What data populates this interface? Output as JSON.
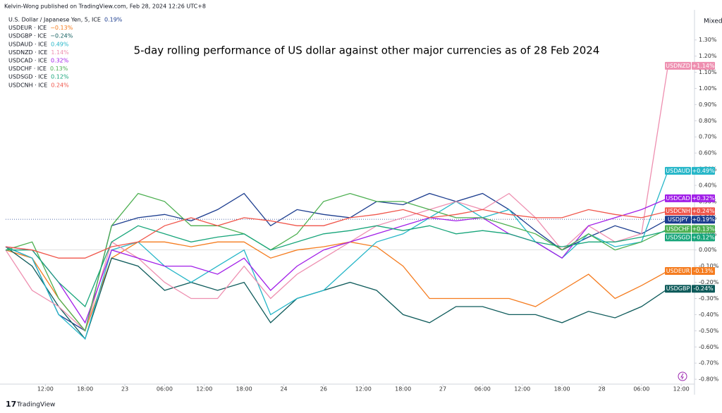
{
  "header": "Kelvin-Wong published on TradingView.com, Feb 28, 2024 12:26 UTC+8",
  "scale_mode": "Mixed",
  "brand": "TradingView",
  "chart_data": {
    "type": "line",
    "title": "5-day rolling performance of US dollar against other major currencies as of 28 Feb 2024",
    "x": [
      6,
      10,
      14,
      18,
      22,
      26,
      30,
      34,
      38,
      42,
      46,
      50,
      54,
      58,
      62,
      66,
      70,
      74,
      78,
      82,
      86,
      90,
      94,
      98,
      102,
      106
    ],
    "xlim": [
      6,
      110
    ],
    "xticks": [
      {
        "value": 12,
        "label": "12:00"
      },
      {
        "value": 18,
        "label": "18:00"
      },
      {
        "value": 24,
        "label": "23"
      },
      {
        "value": 30,
        "label": "06:00"
      },
      {
        "value": 36,
        "label": "12:00"
      },
      {
        "value": 42,
        "label": "18:00"
      },
      {
        "value": 48,
        "label": "24"
      },
      {
        "value": 54,
        "label": "26"
      },
      {
        "value": 60,
        "label": "12:00"
      },
      {
        "value": 66,
        "label": "18:00"
      },
      {
        "value": 72,
        "label": "27"
      },
      {
        "value": 78,
        "label": "06:00"
      },
      {
        "value": 84,
        "label": "12:00"
      },
      {
        "value": 90,
        "label": "18:00"
      },
      {
        "value": 96,
        "label": "28"
      },
      {
        "value": 102,
        "label": "06:00"
      },
      {
        "value": 108,
        "label": "12:00"
      }
    ],
    "ylim": [
      -0.83,
      1.46
    ],
    "yticks": [
      {
        "value": 1.3,
        "label": "1.30%"
      },
      {
        "value": 1.2,
        "label": "1.20%"
      },
      {
        "value": 1.1,
        "label": "1.10%"
      },
      {
        "value": 1.0,
        "label": "1.00%"
      },
      {
        "value": 0.9,
        "label": "0.90%"
      },
      {
        "value": 0.8,
        "label": "0.80%"
      },
      {
        "value": 0.7,
        "label": "0.70%"
      },
      {
        "value": 0.6,
        "label": "0.60%"
      },
      {
        "value": 0.5,
        "label": "0.50%"
      },
      {
        "value": 0.4,
        "label": "0.40%"
      },
      {
        "value": 0.3,
        "label": "0.30%"
      },
      {
        "value": 0.2,
        "label": "0.20%"
      },
      {
        "value": 0.1,
        "label": "0.10%"
      },
      {
        "value": 0,
        "label": "0.00%"
      },
      {
        "value": -0.1,
        "label": "-0.10%"
      },
      {
        "value": -0.2,
        "label": "-0.20%"
      },
      {
        "value": -0.3,
        "label": "-0.30%"
      },
      {
        "value": -0.4,
        "label": "-0.40%"
      },
      {
        "value": -0.5,
        "label": "-0.50%"
      },
      {
        "value": -0.6,
        "label": "-0.60%"
      },
      {
        "value": -0.7,
        "label": "-0.70%"
      },
      {
        "value": -0.8,
        "label": "-0.80%"
      }
    ],
    "series": [
      {
        "name": "U.S. Dollar / Japanese Yen, 5, ICE",
        "symbol": "USDJPY",
        "color": "#1c3d8f",
        "legend_label": "0.19%",
        "tag_label": "+0.19%",
        "values": [
          0.02,
          -0.05,
          -0.4,
          -0.5,
          0.15,
          0.2,
          0.22,
          0.18,
          0.25,
          0.35,
          0.15,
          0.25,
          0.22,
          0.2,
          0.3,
          0.28,
          0.35,
          0.3,
          0.35,
          0.25,
          0.12,
          0.0,
          0.08,
          0.15,
          0.1,
          0.19
        ]
      },
      {
        "name": "USDEUR · ICE",
        "symbol": "USDEUR",
        "color": "#f57c1f",
        "legend_label": "−0.13%",
        "tag_label": "-0.13%",
        "values": [
          0.0,
          -0.05,
          -0.3,
          -0.5,
          -0.05,
          0.05,
          0.05,
          0.02,
          0.05,
          0.05,
          -0.05,
          0.0,
          0.02,
          0.05,
          0.02,
          -0.1,
          -0.3,
          -0.3,
          -0.3,
          -0.3,
          -0.35,
          -0.25,
          -0.15,
          -0.3,
          -0.22,
          -0.13
        ]
      },
      {
        "name": "USDGBP · ICE",
        "symbol": "USDGBP",
        "color": "#0e5b5b",
        "legend_label": "−0.24%",
        "tag_label": "-0.24%",
        "values": [
          0.02,
          -0.1,
          -0.35,
          -0.55,
          -0.05,
          -0.1,
          -0.25,
          -0.2,
          -0.25,
          -0.2,
          -0.45,
          -0.3,
          -0.25,
          -0.2,
          -0.25,
          -0.4,
          -0.45,
          -0.35,
          -0.35,
          -0.4,
          -0.4,
          -0.45,
          -0.38,
          -0.42,
          -0.35,
          -0.24
        ]
      },
      {
        "name": "USDAUD · ICE",
        "symbol": "USDAUD",
        "color": "#26b6c8",
        "legend_label": "0.49%",
        "tag_label": "+0.49%",
        "values": [
          0.02,
          -0.05,
          -0.4,
          -0.55,
          0.0,
          0.05,
          -0.1,
          -0.2,
          -0.1,
          0.0,
          -0.4,
          -0.3,
          -0.25,
          -0.1,
          0.05,
          0.1,
          0.2,
          0.3,
          0.2,
          0.25,
          0.05,
          -0.05,
          0.1,
          0.02,
          0.05,
          0.49
        ]
      },
      {
        "name": "USDNZD · ICE",
        "symbol": "USDNZD",
        "color": "#ee8fb0",
        "legend_label": "1.14%",
        "tag_label": "+1.14%",
        "values": [
          0.0,
          -0.25,
          -0.35,
          -0.5,
          0.05,
          -0.05,
          -0.2,
          -0.3,
          -0.3,
          -0.1,
          -0.3,
          -0.15,
          -0.05,
          0.05,
          0.15,
          0.2,
          0.25,
          0.3,
          0.25,
          0.35,
          0.2,
          0.0,
          0.15,
          0.05,
          0.1,
          1.14
        ]
      },
      {
        "name": "USDCAD · ICE",
        "symbol": "USDCAD",
        "color": "#a11fe8",
        "legend_label": "0.32%",
        "tag_label": "+0.32%",
        "values": [
          0.02,
          0.0,
          -0.2,
          -0.45,
          0.0,
          -0.05,
          -0.1,
          -0.1,
          -0.15,
          -0.05,
          -0.25,
          -0.1,
          0.0,
          0.05,
          0.1,
          0.15,
          0.2,
          0.18,
          0.2,
          0.1,
          0.05,
          -0.05,
          0.15,
          0.2,
          0.25,
          0.32
        ]
      },
      {
        "name": "USDCHF · ICE",
        "symbol": "USDCHF",
        "color": "#4caf50",
        "legend_label": "0.13%",
        "tag_label": "+0.13%",
        "values": [
          0.0,
          0.05,
          -0.3,
          -0.5,
          0.15,
          0.35,
          0.3,
          0.15,
          0.15,
          0.1,
          0.0,
          0.1,
          0.3,
          0.35,
          0.3,
          0.3,
          0.25,
          0.2,
          0.2,
          0.15,
          0.1,
          0.0,
          0.1,
          0.0,
          0.05,
          0.13
        ]
      },
      {
        "name": "USDSGD · ICE",
        "symbol": "USDSGD",
        "color": "#17a57a",
        "legend_label": "0.12%",
        "tag_label": "+0.12%",
        "values": [
          0.0,
          0.0,
          -0.2,
          -0.35,
          0.05,
          0.15,
          0.1,
          0.05,
          0.08,
          0.1,
          0.0,
          0.05,
          0.1,
          0.12,
          0.15,
          0.12,
          0.15,
          0.1,
          0.12,
          0.1,
          0.05,
          0.02,
          0.05,
          0.05,
          0.08,
          0.12
        ]
      },
      {
        "name": "USDCNH · ICE",
        "symbol": "USDCNH",
        "color": "#f0564b",
        "legend_label": "0.24%",
        "tag_label": "+0.24%",
        "values": [
          0.02,
          0.0,
          -0.05,
          -0.05,
          0.02,
          0.05,
          0.15,
          0.2,
          0.15,
          0.2,
          0.18,
          0.15,
          0.15,
          0.2,
          0.22,
          0.25,
          0.2,
          0.22,
          0.25,
          0.22,
          0.2,
          0.2,
          0.25,
          0.22,
          0.2,
          0.24
        ]
      }
    ]
  }
}
